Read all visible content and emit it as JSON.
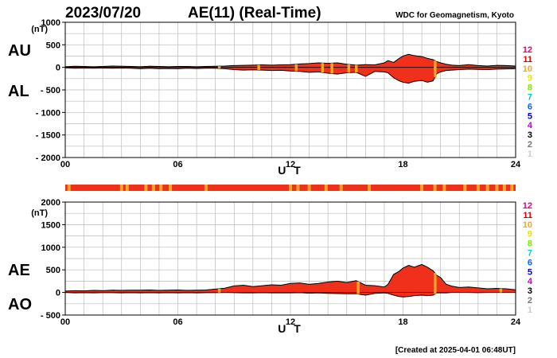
{
  "header": {
    "date": "2023/07/20",
    "title": "AE(11) (Real-Time)",
    "source": "WDC for Geomagnetism, Kyoto"
  },
  "footer": {
    "created": "[Created at 2025-04-01 06:48UT]"
  },
  "colors": {
    "fill": "#f0301a",
    "stripe": "#f5a623",
    "grid": "#bbbbbb"
  },
  "legend": {
    "items": [
      {
        "label": "12",
        "color": "#e6007e"
      },
      {
        "label": "11",
        "color": "#e60000"
      },
      {
        "label": "10",
        "color": "#f5a623"
      },
      {
        "label": "9",
        "color": "#e6e600"
      },
      {
        "label": "8",
        "color": "#7fe600"
      },
      {
        "label": "7",
        "color": "#00cccc"
      },
      {
        "label": "6",
        "color": "#0066ff"
      },
      {
        "label": "5",
        "color": "#0000cc"
      },
      {
        "label": "4",
        "color": "#cc00cc"
      },
      {
        "label": "3",
        "color": "#000000"
      },
      {
        "label": "2",
        "color": "#777777"
      },
      {
        "label": "1",
        "color": "#cccccc"
      }
    ]
  },
  "chart_data": [
    {
      "type": "area",
      "panel": "AU/AL",
      "series_labels": [
        "AU",
        "AL"
      ],
      "xlabel": "U T",
      "ylabel_unit": "(nT)",
      "xlim": [
        0,
        24
      ],
      "ylim": [
        -2000,
        1000
      ],
      "x_ticks": [
        "00",
        "06",
        "12",
        "18",
        "24"
      ],
      "y_ticks": [
        "1000",
        "500",
        "0",
        "- 500",
        "- 1000",
        "- 1500",
        "- 2000"
      ],
      "y_tick_values": [
        1000,
        500,
        0,
        -500,
        -1000,
        -1500,
        -2000
      ],
      "x": [
        0,
        0.5,
        1,
        1.5,
        2,
        2.5,
        3,
        3.5,
        4,
        4.5,
        5,
        5.5,
        6,
        6.5,
        7,
        7.5,
        8,
        8.5,
        9,
        9.5,
        10,
        10.5,
        11,
        11.5,
        12,
        12.5,
        13,
        13.5,
        14,
        14.5,
        15,
        15.5,
        16,
        16.5,
        17,
        17.2,
        17.5,
        17.8,
        18,
        18.3,
        18.6,
        19,
        19.3,
        19.6,
        19.8,
        20,
        20.3,
        20.6,
        21,
        21.5,
        22,
        22.5,
        23,
        23.5,
        24
      ],
      "upper": [
        15,
        25,
        20,
        15,
        20,
        30,
        25,
        20,
        15,
        25,
        20,
        15,
        20,
        20,
        15,
        20,
        25,
        30,
        40,
        45,
        50,
        55,
        50,
        55,
        60,
        75,
        85,
        100,
        90,
        100,
        70,
        50,
        60,
        55,
        100,
        150,
        110,
        200,
        250,
        290,
        260,
        240,
        200,
        170,
        130,
        100,
        70,
        50,
        40,
        60,
        40,
        30,
        45,
        40,
        30
      ],
      "lower": [
        -10,
        -20,
        -15,
        -20,
        -15,
        -20,
        -15,
        -20,
        -30,
        -20,
        -30,
        -25,
        -30,
        -20,
        -25,
        -20,
        -20,
        -30,
        -50,
        -60,
        -55,
        -60,
        -70,
        -65,
        -80,
        -90,
        -110,
        -100,
        -130,
        -150,
        -120,
        -110,
        -200,
        -90,
        -100,
        -120,
        -230,
        -300,
        -330,
        -350,
        -310,
        -290,
        -330,
        -300,
        -140,
        -100,
        -70,
        -60,
        -50,
        -40,
        -45,
        -50,
        -40,
        -35,
        -30
      ]
    },
    {
      "type": "area",
      "panel": "AE/AO",
      "series_labels": [
        "AE",
        "AO"
      ],
      "xlabel": "U T",
      "ylabel_unit": "(nT)",
      "xlim": [
        0,
        24
      ],
      "ylim": [
        -500,
        2000
      ],
      "x_ticks": [
        "00",
        "06",
        "12",
        "18",
        "24"
      ],
      "y_ticks": [
        "2000",
        "1500",
        "1000",
        "500",
        "0",
        "- 500"
      ],
      "y_tick_values": [
        2000,
        1500,
        1000,
        500,
        0,
        -500
      ],
      "x": [
        0,
        0.5,
        1,
        1.5,
        2,
        2.5,
        3,
        3.5,
        4,
        4.5,
        5,
        5.5,
        6,
        6.5,
        7,
        7.5,
        8,
        8.5,
        9,
        9.5,
        10,
        10.5,
        11,
        11.5,
        12,
        12.5,
        13,
        13.5,
        14,
        14.5,
        15,
        15.5,
        16,
        16.5,
        17,
        17.2,
        17.5,
        17.8,
        18,
        18.3,
        18.6,
        19,
        19.3,
        19.6,
        19.8,
        20,
        20.3,
        20.6,
        21,
        21.5,
        22,
        22.5,
        23,
        23.5,
        24
      ],
      "upper": [
        30,
        40,
        35,
        45,
        40,
        50,
        45,
        50,
        50,
        55,
        45,
        50,
        55,
        45,
        50,
        55,
        75,
        95,
        145,
        160,
        130,
        150,
        170,
        160,
        200,
        210,
        180,
        200,
        230,
        250,
        220,
        260,
        160,
        150,
        120,
        180,
        400,
        470,
        540,
        600,
        560,
        620,
        560,
        480,
        380,
        330,
        180,
        140,
        110,
        120,
        100,
        80,
        90,
        80,
        60
      ],
      "lower": [
        0,
        -10,
        -5,
        -10,
        -5,
        -5,
        -10,
        -5,
        -10,
        -5,
        -10,
        -5,
        -10,
        -5,
        -10,
        -5,
        -5,
        0,
        -5,
        -10,
        -10,
        -5,
        -10,
        -10,
        -10,
        -5,
        -15,
        -10,
        -20,
        -25,
        -30,
        -30,
        -60,
        -20,
        -10,
        -20,
        -60,
        -90,
        -100,
        -90,
        -70,
        -60,
        -70,
        -60,
        -10,
        -10,
        -10,
        0,
        0,
        0,
        -5,
        0,
        0,
        0,
        0
      ]
    }
  ],
  "stripe_bar": {
    "orange_hours": [
      0.2,
      3.0,
      3.3,
      4.3,
      4.7,
      5.1,
      5.6,
      7.5,
      12.0,
      12.4,
      13.0,
      13.9,
      14.7,
      16.2,
      19.0,
      19.7,
      20.2,
      21.3,
      22.0,
      22.5,
      23.0,
      23.4,
      23.8
    ]
  },
  "plot_stripes": {
    "upper_panel_hours": [
      8.2,
      10.3,
      12.3,
      13.7,
      14.2,
      15.1,
      15.5,
      19.7
    ],
    "lower_panel_hours": [
      8.2,
      15.6,
      19.7,
      23.2
    ]
  }
}
